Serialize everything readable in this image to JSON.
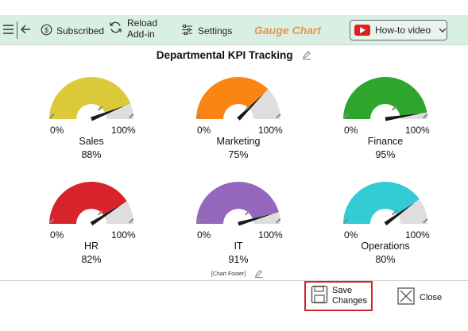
{
  "toolbar": {
    "subscribed_label": "Subscribed",
    "reload_label_line1": "Reload",
    "reload_label_line2": "Add-in",
    "settings_label": "Settings",
    "gauge_chart_label": "Gauge Chart",
    "howto_label": "How-to video",
    "accent_color": "#e9954b",
    "background_color": "#d9efe4"
  },
  "chart": {
    "title": "Departmental KPI Tracking",
    "footer": "[Chart Footer]"
  },
  "chart_data": [
    {
      "type": "gauge",
      "name": "Sales",
      "value_label": "88%",
      "value": 88,
      "min_label": "0%",
      "max_label": "100%",
      "min": 0,
      "max": 100,
      "color": "#dcc93a"
    },
    {
      "type": "gauge",
      "name": "Marketing",
      "value_label": "75%",
      "value": 75,
      "min_label": "0%",
      "max_label": "100%",
      "min": 0,
      "max": 100,
      "color": "#fb8513"
    },
    {
      "type": "gauge",
      "name": "Finance",
      "value_label": "95%",
      "value": 95,
      "min_label": "0%",
      "max_label": "100%",
      "min": 0,
      "max": 100,
      "color": "#2ea62e"
    },
    {
      "type": "gauge",
      "name": "HR",
      "value_label": "82%",
      "value": 82,
      "min_label": "0%",
      "max_label": "100%",
      "min": 0,
      "max": 100,
      "color": "#d8232a"
    },
    {
      "type": "gauge",
      "name": "IT",
      "value_label": "91%",
      "value": 91,
      "min_label": "0%",
      "max_label": "100%",
      "min": 0,
      "max": 100,
      "color": "#9467bd"
    },
    {
      "type": "gauge",
      "name": "Operations",
      "value_label": "80%",
      "value": 80,
      "min_label": "0%",
      "max_label": "100%",
      "min": 0,
      "max": 100,
      "color": "#33cbd4"
    }
  ],
  "buttons": {
    "save_line1": "Save",
    "save_line2": "Changes",
    "close_label": "Close"
  }
}
